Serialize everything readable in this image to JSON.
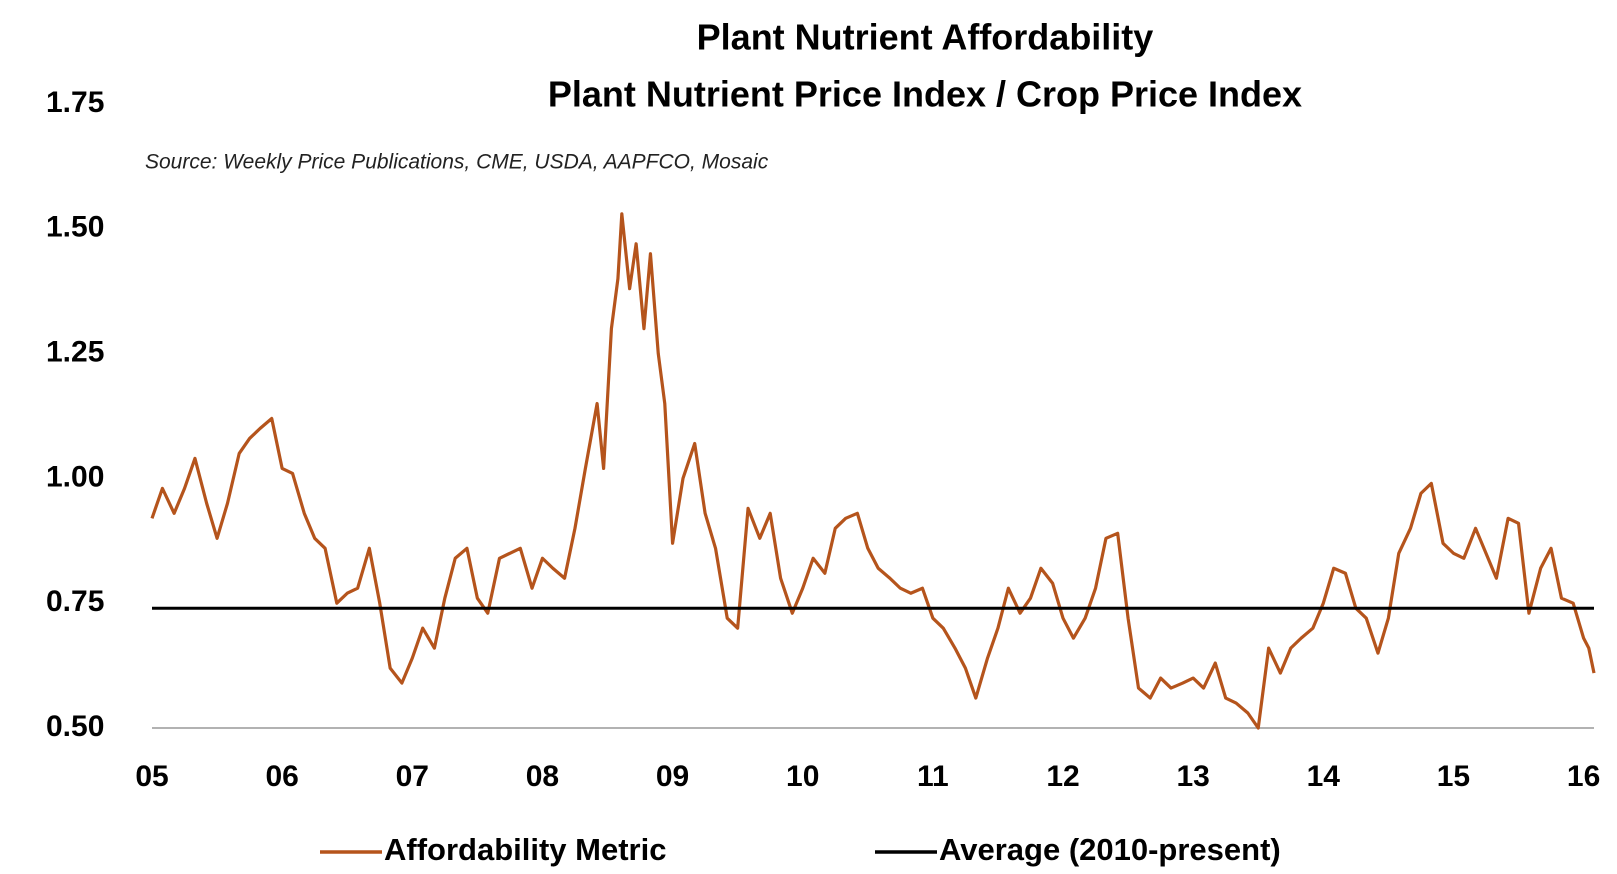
{
  "chart_data": {
    "type": "line",
    "title": "Plant Nutrient Affordability",
    "subtitle": "Plant Nutrient Price Index / Crop Price Index",
    "source": "Source: Weekly Price Publications, CME, USDA, AAPFCO, Mosaic",
    "x": [
      2005.0,
      2005.08,
      2005.17,
      2005.25,
      2005.33,
      2005.42,
      2005.5,
      2005.58,
      2005.67,
      2005.75,
      2005.83,
      2005.92,
      2006.0,
      2006.08,
      2006.17,
      2006.25,
      2006.33,
      2006.42,
      2006.5,
      2006.58,
      2006.67,
      2006.75,
      2006.83,
      2006.92,
      2007.0,
      2007.08,
      2007.17,
      2007.25,
      2007.33,
      2007.42,
      2007.5,
      2007.58,
      2007.67,
      2007.75,
      2007.83,
      2007.92,
      2008.0,
      2008.08,
      2008.17,
      2008.25,
      2008.33,
      2008.42,
      2008.47,
      2008.53,
      2008.58,
      2008.61,
      2008.67,
      2008.72,
      2008.78,
      2008.83,
      2008.89,
      2008.94,
      2009.0,
      2009.08,
      2009.17,
      2009.25,
      2009.33,
      2009.42,
      2009.5,
      2009.58,
      2009.67,
      2009.75,
      2009.83,
      2009.92,
      2010.0,
      2010.08,
      2010.17,
      2010.25,
      2010.33,
      2010.42,
      2010.5,
      2010.58,
      2010.67,
      2010.75,
      2010.83,
      2010.92,
      2011.0,
      2011.08,
      2011.17,
      2011.25,
      2011.33,
      2011.42,
      2011.5,
      2011.58,
      2011.67,
      2011.75,
      2011.83,
      2011.92,
      2012.0,
      2012.08,
      2012.17,
      2012.25,
      2012.33,
      2012.42,
      2012.5,
      2012.58,
      2012.67,
      2012.75,
      2012.83,
      2012.92,
      2013.0,
      2013.08,
      2013.17,
      2013.25,
      2013.33,
      2013.42,
      2013.5,
      2013.58,
      2013.67,
      2013.75,
      2013.83,
      2013.92,
      2014.0,
      2014.08,
      2014.17,
      2014.25,
      2014.33,
      2014.42,
      2014.5,
      2014.58,
      2014.67,
      2014.75,
      2014.83,
      2014.92,
      2015.0,
      2015.08,
      2015.17,
      2015.25,
      2015.33,
      2015.42,
      2015.5,
      2015.58,
      2015.67,
      2015.75,
      2015.83,
      2015.92,
      2016.0,
      2016.04,
      2016.08
    ],
    "series": [
      {
        "name": "Affordability Metric",
        "color": "#b5541c",
        "values": [
          0.92,
          0.98,
          0.93,
          0.98,
          1.04,
          0.95,
          0.88,
          0.95,
          1.05,
          1.08,
          1.1,
          1.12,
          1.02,
          1.01,
          0.93,
          0.88,
          0.86,
          0.75,
          0.77,
          0.78,
          0.86,
          0.75,
          0.62,
          0.59,
          0.64,
          0.7,
          0.66,
          0.76,
          0.84,
          0.86,
          0.76,
          0.73,
          0.84,
          0.85,
          0.86,
          0.78,
          0.84,
          0.82,
          0.8,
          0.9,
          1.02,
          1.15,
          1.02,
          1.3,
          1.4,
          1.53,
          1.38,
          1.47,
          1.3,
          1.45,
          1.25,
          1.15,
          0.87,
          1.0,
          1.07,
          0.93,
          0.86,
          0.72,
          0.7,
          0.94,
          0.88,
          0.93,
          0.8,
          0.73,
          0.78,
          0.84,
          0.81,
          0.9,
          0.92,
          0.93,
          0.86,
          0.82,
          0.8,
          0.78,
          0.77,
          0.78,
          0.72,
          0.7,
          0.66,
          0.62,
          0.56,
          0.64,
          0.7,
          0.78,
          0.73,
          0.76,
          0.82,
          0.79,
          0.72,
          0.68,
          0.72,
          0.78,
          0.88,
          0.89,
          0.72,
          0.58,
          0.56,
          0.6,
          0.58,
          0.59,
          0.6,
          0.58,
          0.63,
          0.56,
          0.55,
          0.53,
          0.5,
          0.66,
          0.61,
          0.66,
          0.68,
          0.7,
          0.75,
          0.82,
          0.81,
          0.74,
          0.72,
          0.65,
          0.72,
          0.85,
          0.9,
          0.97,
          0.99,
          0.87,
          0.85,
          0.84,
          0.9,
          0.85,
          0.8,
          0.92,
          0.91,
          0.73,
          0.82,
          0.86,
          0.76,
          0.75,
          0.68,
          0.66,
          0.61
        ]
      },
      {
        "name": "Average (2010-present)",
        "color": "#000000",
        "value": 0.74
      }
    ],
    "xlim": [
      2005,
      2016.08
    ],
    "xticks": [
      {
        "value": 2005,
        "label": "05"
      },
      {
        "value": 2006,
        "label": "06"
      },
      {
        "value": 2007,
        "label": "07"
      },
      {
        "value": 2008,
        "label": "08"
      },
      {
        "value": 2009,
        "label": "09"
      },
      {
        "value": 2010,
        "label": "10"
      },
      {
        "value": 2011,
        "label": "11"
      },
      {
        "value": 2012,
        "label": "12"
      },
      {
        "value": 2013,
        "label": "13"
      },
      {
        "value": 2014,
        "label": "14"
      },
      {
        "value": 2015,
        "label": "15"
      },
      {
        "value": 2016,
        "label": "16"
      }
    ],
    "ylim": [
      0.5,
      1.75
    ],
    "yticks": [
      {
        "value": 0.5,
        "label": "0.50"
      },
      {
        "value": 0.75,
        "label": "0.75"
      },
      {
        "value": 1.0,
        "label": "1.00"
      },
      {
        "value": 1.25,
        "label": "1.25"
      },
      {
        "value": 1.5,
        "label": "1.50"
      },
      {
        "value": 1.75,
        "label": "1.75"
      }
    ],
    "grid": false
  }
}
